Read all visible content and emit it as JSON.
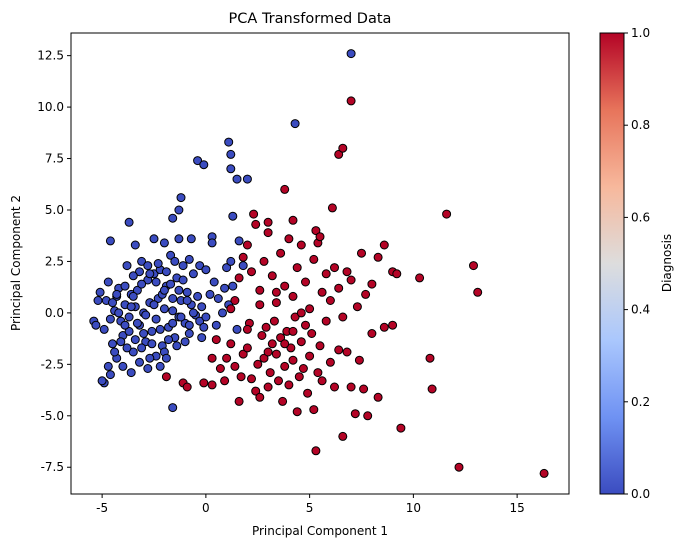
{
  "chart_data": {
    "type": "scatter",
    "title": "PCA Transformed Data",
    "xlabel": "Principal Component 1",
    "ylabel": "Principal Component 2",
    "xlim": [
      -6.5,
      17.5
    ],
    "ylim": [
      -8.8,
      13.6
    ],
    "xticks": [
      -5,
      0,
      5,
      10,
      15
    ],
    "yticks": [
      -7.5,
      -5.0,
      -2.5,
      0.0,
      2.5,
      5.0,
      7.5,
      10.0,
      12.5
    ],
    "grid": false,
    "legend": "none",
    "colorbar": {
      "label": "Diagnosis",
      "range": [
        0.0,
        1.0
      ],
      "ticks": [
        0.0,
        0.2,
        0.4,
        0.6,
        0.8,
        1.0
      ],
      "colormap": "coolwarm",
      "colors": [
        "#3b4cc0",
        "#6f92f3",
        "#aac7fd",
        "#dddddd",
        "#f7b89c",
        "#e7745b",
        "#b40426"
      ]
    },
    "series": [
      {
        "value": 0,
        "color": "#3b4cc0",
        "points": [
          [
            -5.4,
            -0.4
          ],
          [
            -5.3,
            -0.6
          ],
          [
            -5.2,
            0.6
          ],
          [
            -5.1,
            1.0
          ],
          [
            -4.9,
            -0.8
          ],
          [
            -4.8,
            0.6
          ],
          [
            -4.7,
            1.5
          ],
          [
            -4.6,
            -0.3
          ],
          [
            -4.5,
            -1.5
          ],
          [
            -4.4,
            0.1
          ],
          [
            -4.3,
            0.8
          ],
          [
            -4.2,
            1.2
          ],
          [
            -4.1,
            -0.4
          ],
          [
            -4.0,
            -1.1
          ],
          [
            -3.9,
            0.4
          ],
          [
            -3.8,
            2.3
          ],
          [
            -3.7,
            -0.2
          ],
          [
            -3.6,
            0.9
          ],
          [
            -3.5,
            -1.9
          ],
          [
            -3.4,
            0.3
          ],
          [
            -3.3,
            1.1
          ],
          [
            -3.2,
            -0.6
          ],
          [
            -3.1,
            2.5
          ],
          [
            -3.0,
            0.0
          ],
          [
            -2.9,
            -1.4
          ],
          [
            -2.8,
            1.6
          ],
          [
            -2.7,
            0.5
          ],
          [
            -2.6,
            -0.9
          ],
          [
            -2.5,
            1.9
          ],
          [
            -2.4,
            -0.3
          ],
          [
            -2.3,
            0.7
          ],
          [
            -2.2,
            2.1
          ],
          [
            -2.1,
            -1.6
          ],
          [
            -2.0,
            0.2
          ],
          [
            -1.9,
            1.3
          ],
          [
            -1.8,
            -0.7
          ],
          [
            -1.7,
            2.8
          ],
          [
            -1.6,
            0.1
          ],
          [
            -1.5,
            -1.2
          ],
          [
            -1.4,
            1.7
          ],
          [
            -1.3,
            -0.2
          ],
          [
            -1.2,
            0.6
          ],
          [
            -1.1,
            2.3
          ],
          [
            -1.0,
            -0.5
          ],
          [
            -0.9,
            1.0
          ],
          [
            -0.8,
            -1.0
          ],
          [
            -0.7,
            0.4
          ],
          [
            -0.6,
            1.9
          ],
          [
            -0.5,
            -0.1
          ],
          [
            -0.4,
            0.8
          ],
          [
            -0.3,
            -0.4
          ],
          [
            -0.2,
            0.3
          ],
          [
            -0.1,
            -0.7
          ],
          [
            0.0,
            -0.2
          ],
          [
            -4.9,
            -3.4
          ],
          [
            -4.6,
            -3.0
          ],
          [
            -4.3,
            -2.2
          ],
          [
            -4.0,
            -2.6
          ],
          [
            -3.6,
            -2.9
          ],
          [
            -3.2,
            -2.4
          ],
          [
            -2.8,
            -2.7
          ],
          [
            -2.4,
            -2.1
          ],
          [
            -2.0,
            -1.9
          ],
          [
            -3.8,
            -1.7
          ],
          [
            -3.4,
            -1.3
          ],
          [
            -3.0,
            -1.0
          ],
          [
            -2.6,
            -1.5
          ],
          [
            -2.2,
            -0.8
          ],
          [
            -1.8,
            -1.3
          ],
          [
            -1.4,
            -1.6
          ],
          [
            -4.4,
            -1.9
          ],
          [
            -4.1,
            -1.4
          ],
          [
            -3.7,
            -0.9
          ],
          [
            -3.3,
            -0.5
          ],
          [
            -2.9,
            -0.1
          ],
          [
            -2.5,
            0.4
          ],
          [
            -2.1,
            0.9
          ],
          [
            -1.7,
            1.4
          ],
          [
            -1.3,
            1.1
          ],
          [
            -0.9,
            0.6
          ],
          [
            -4.5,
            0.5
          ],
          [
            -4.2,
            0.0
          ],
          [
            -3.9,
            -0.6
          ],
          [
            -3.5,
            0.8
          ],
          [
            -3.1,
            1.4
          ],
          [
            -2.7,
            1.9
          ],
          [
            -2.3,
            2.4
          ],
          [
            -1.9,
            2.0
          ],
          [
            -1.5,
            2.5
          ],
          [
            -1.1,
            1.6
          ],
          [
            -3.4,
            3.3
          ],
          [
            -3.7,
            4.4
          ],
          [
            -4.6,
            3.5
          ],
          [
            -2.5,
            3.6
          ],
          [
            -2.0,
            3.4
          ],
          [
            -1.6,
            4.6
          ],
          [
            -1.3,
            3.6
          ],
          [
            -1.3,
            5.0
          ],
          [
            -1.2,
            5.6
          ],
          [
            -0.8,
            2.6
          ],
          [
            -0.7,
            3.6
          ],
          [
            -0.4,
            7.4
          ],
          [
            -0.1,
            7.2
          ],
          [
            0.3,
            3.7
          ],
          [
            0.3,
            3.4
          ],
          [
            -0.3,
            2.3
          ],
          [
            0.0,
            2.1
          ],
          [
            0.4,
            1.5
          ],
          [
            0.6,
            0.7
          ],
          [
            0.8,
            0.0
          ],
          [
            0.5,
            -0.6
          ],
          [
            0.9,
            1.2
          ],
          [
            1.0,
            2.2
          ],
          [
            1.2,
            2.5
          ],
          [
            1.3,
            1.3
          ],
          [
            1.5,
            -0.8
          ],
          [
            1.1,
            0.4
          ],
          [
            1.6,
            3.5
          ],
          [
            1.3,
            4.7
          ],
          [
            1.1,
            8.3
          ],
          [
            1.2,
            7.7
          ],
          [
            1.2,
            7.0
          ],
          [
            1.5,
            6.5
          ],
          [
            2.0,
            6.5
          ],
          [
            1.8,
            2.3
          ],
          [
            -1.6,
            -4.6
          ],
          [
            4.3,
            9.2
          ],
          [
            7.0,
            12.6
          ],
          [
            -5.0,
            -3.3
          ],
          [
            -4.7,
            -2.6
          ],
          [
            -2.2,
            -2.6
          ],
          [
            -1.9,
            -2.2
          ],
          [
            -1.6,
            -0.5
          ],
          [
            -1.0,
            -1.4
          ],
          [
            -0.6,
            0.0
          ],
          [
            -0.2,
            -1.2
          ],
          [
            0.2,
            0.9
          ],
          [
            -3.6,
            0.3
          ],
          [
            -3.2,
            2.0
          ],
          [
            -2.8,
            2.3
          ],
          [
            -2.4,
            1.5
          ],
          [
            -2.0,
            1.1
          ],
          [
            -1.6,
            0.7
          ],
          [
            -1.2,
            -0.2
          ],
          [
            -0.8,
            -0.6
          ],
          [
            -4.3,
            0.9
          ],
          [
            -3.9,
            1.3
          ],
          [
            -3.5,
            1.8
          ],
          [
            -3.1,
            -1.7
          ],
          [
            -2.7,
            -2.2
          ]
        ]
      },
      {
        "value": 1,
        "color": "#b40426",
        "points": [
          [
            -1.9,
            -3.1
          ],
          [
            -1.1,
            -3.4
          ],
          [
            -0.9,
            -3.6
          ],
          [
            -0.1,
            -3.4
          ],
          [
            0.3,
            -3.5
          ],
          [
            0.3,
            -2.2
          ],
          [
            0.5,
            -1.3
          ],
          [
            0.7,
            -2.7
          ],
          [
            0.9,
            -3.3
          ],
          [
            1.0,
            -2.2
          ],
          [
            1.2,
            -1.5
          ],
          [
            1.4,
            -2.6
          ],
          [
            1.6,
            -4.3
          ],
          [
            1.7,
            -3.1
          ],
          [
            1.8,
            -2.0
          ],
          [
            2.0,
            -1.7
          ],
          [
            2.1,
            -0.5
          ],
          [
            2.2,
            -3.2
          ],
          [
            2.4,
            -3.8
          ],
          [
            2.5,
            -2.5
          ],
          [
            2.6,
            -4.1
          ],
          [
            2.7,
            -1.1
          ],
          [
            2.8,
            -2.2
          ],
          [
            2.9,
            -0.7
          ],
          [
            3.0,
            -3.6
          ],
          [
            3.1,
            -2.9
          ],
          [
            3.2,
            -1.5
          ],
          [
            3.3,
            -0.4
          ],
          [
            3.4,
            -2.0
          ],
          [
            3.5,
            -3.3
          ],
          [
            3.6,
            -1.2
          ],
          [
            3.7,
            -4.3
          ],
          [
            3.8,
            -2.6
          ],
          [
            3.9,
            -0.9
          ],
          [
            4.0,
            -3.5
          ],
          [
            4.1,
            -1.7
          ],
          [
            4.2,
            -2.3
          ],
          [
            4.3,
            -0.2
          ],
          [
            4.4,
            -4.8
          ],
          [
            4.5,
            -3.1
          ],
          [
            4.6,
            -1.4
          ],
          [
            4.7,
            -2.7
          ],
          [
            4.8,
            -0.6
          ],
          [
            4.9,
            -3.9
          ],
          [
            5.0,
            -2.1
          ],
          [
            5.1,
            -1.0
          ],
          [
            5.2,
            -4.7
          ],
          [
            5.3,
            -6.7
          ],
          [
            5.4,
            -2.9
          ],
          [
            5.5,
            -1.6
          ],
          [
            5.6,
            -3.3
          ],
          [
            5.8,
            -0.4
          ],
          [
            6.0,
            -2.4
          ],
          [
            6.2,
            -3.6
          ],
          [
            6.4,
            -1.8
          ],
          [
            6.6,
            -6.0
          ],
          [
            6.8,
            -1.9
          ],
          [
            7.0,
            -3.6
          ],
          [
            7.2,
            -4.9
          ],
          [
            7.4,
            -2.3
          ],
          [
            7.6,
            -3.7
          ],
          [
            7.8,
            -5.0
          ],
          [
            8.0,
            -1.0
          ],
          [
            8.3,
            -4.1
          ],
          [
            8.6,
            -0.7
          ],
          [
            9.0,
            -0.6
          ],
          [
            9.4,
            -5.6
          ],
          [
            10.8,
            -2.2
          ],
          [
            10.9,
            -3.7
          ],
          [
            12.2,
            -7.5
          ],
          [
            16.3,
            -7.8
          ],
          [
            1.2,
            0.2
          ],
          [
            1.4,
            0.6
          ],
          [
            1.6,
            1.7
          ],
          [
            1.8,
            2.7
          ],
          [
            2.0,
            3.3
          ],
          [
            2.2,
            2.0
          ],
          [
            2.4,
            4.3
          ],
          [
            2.6,
            1.1
          ],
          [
            2.8,
            2.5
          ],
          [
            3.0,
            3.9
          ],
          [
            3.2,
            1.8
          ],
          [
            3.4,
            0.5
          ],
          [
            3.6,
            2.9
          ],
          [
            3.8,
            1.3
          ],
          [
            4.0,
            3.6
          ],
          [
            4.2,
            0.8
          ],
          [
            4.4,
            2.2
          ],
          [
            4.6,
            3.3
          ],
          [
            4.8,
            1.5
          ],
          [
            5.0,
            0.2
          ],
          [
            5.2,
            2.6
          ],
          [
            5.4,
            3.4
          ],
          [
            5.6,
            1.0
          ],
          [
            5.8,
            1.9
          ],
          [
            6.0,
            0.6
          ],
          [
            6.2,
            2.2
          ],
          [
            6.4,
            1.2
          ],
          [
            6.6,
            -0.2
          ],
          [
            6.8,
            2.0
          ],
          [
            7.0,
            1.6
          ],
          [
            7.3,
            0.3
          ],
          [
            7.5,
            2.9
          ],
          [
            7.7,
            0.9
          ],
          [
            8.0,
            1.4
          ],
          [
            8.3,
            2.7
          ],
          [
            8.6,
            3.3
          ],
          [
            9.0,
            2.0
          ],
          [
            9.2,
            1.9
          ],
          [
            10.3,
            1.7
          ],
          [
            11.6,
            4.8
          ],
          [
            12.9,
            2.3
          ],
          [
            13.1,
            1.0
          ],
          [
            6.4,
            7.7
          ],
          [
            6.6,
            8.0
          ],
          [
            7.0,
            10.3
          ],
          [
            2.3,
            4.8
          ],
          [
            3.0,
            4.4
          ],
          [
            4.2,
            4.5
          ],
          [
            5.3,
            4.0
          ],
          [
            5.5,
            3.7
          ],
          [
            6.1,
            5.1
          ],
          [
            3.8,
            6.0
          ],
          [
            2.0,
            -0.8
          ],
          [
            2.6,
            0.4
          ],
          [
            3.0,
            -1.9
          ],
          [
            3.4,
            1.0
          ],
          [
            3.8,
            -1.5
          ],
          [
            4.2,
            -0.9
          ],
          [
            4.6,
            0.0
          ]
        ]
      }
    ]
  }
}
